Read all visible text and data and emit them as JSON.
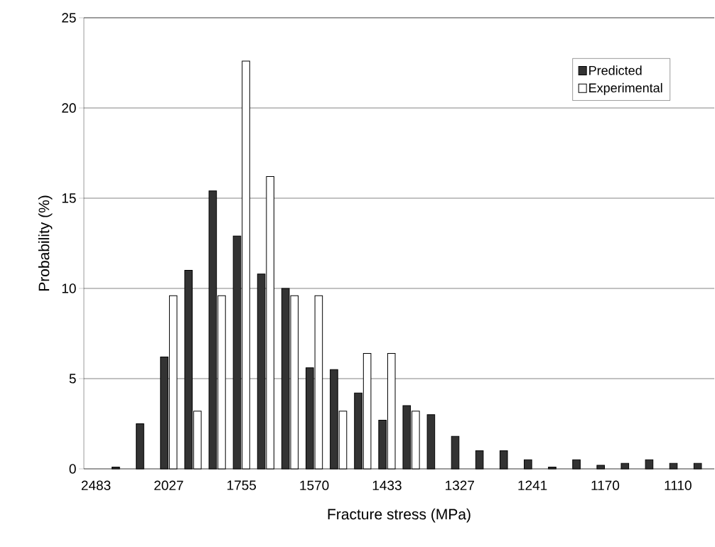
{
  "chart_data": {
    "type": "bar",
    "xlabel": "Fracture stress (MPa)",
    "ylabel": "Probability (%)",
    "categories": [
      "2483",
      null,
      null,
      "2027",
      null,
      null,
      "1755",
      null,
      null,
      "1570",
      null,
      null,
      "1433",
      null,
      null,
      "1327",
      null,
      null,
      "1241",
      null,
      null,
      "1170",
      null,
      null,
      "1110",
      null
    ],
    "series": [
      {
        "name": "Predicted",
        "color": "#333333",
        "values": [
          null,
          0.1,
          2.5,
          6.2,
          11.0,
          15.4,
          12.9,
          10.8,
          10.0,
          5.6,
          5.5,
          4.2,
          2.7,
          3.5,
          3.0,
          1.8,
          1.0,
          1.0,
          0.5,
          0.1,
          0.5,
          0.2,
          0.3,
          0.5,
          0.3,
          0.3
        ]
      },
      {
        "name": "Experimental",
        "color": "#ffffff",
        "values": [
          null,
          null,
          null,
          9.6,
          3.2,
          9.6,
          22.6,
          16.2,
          9.6,
          9.6,
          3.2,
          6.4,
          6.4,
          3.2,
          null,
          null,
          null,
          null,
          null,
          null,
          null,
          null,
          null,
          null,
          null,
          null
        ]
      }
    ],
    "ylim": [
      0,
      25
    ],
    "yticks": [
      0,
      5,
      10,
      15,
      20,
      25
    ],
    "grid": "y",
    "legend": "top right"
  }
}
